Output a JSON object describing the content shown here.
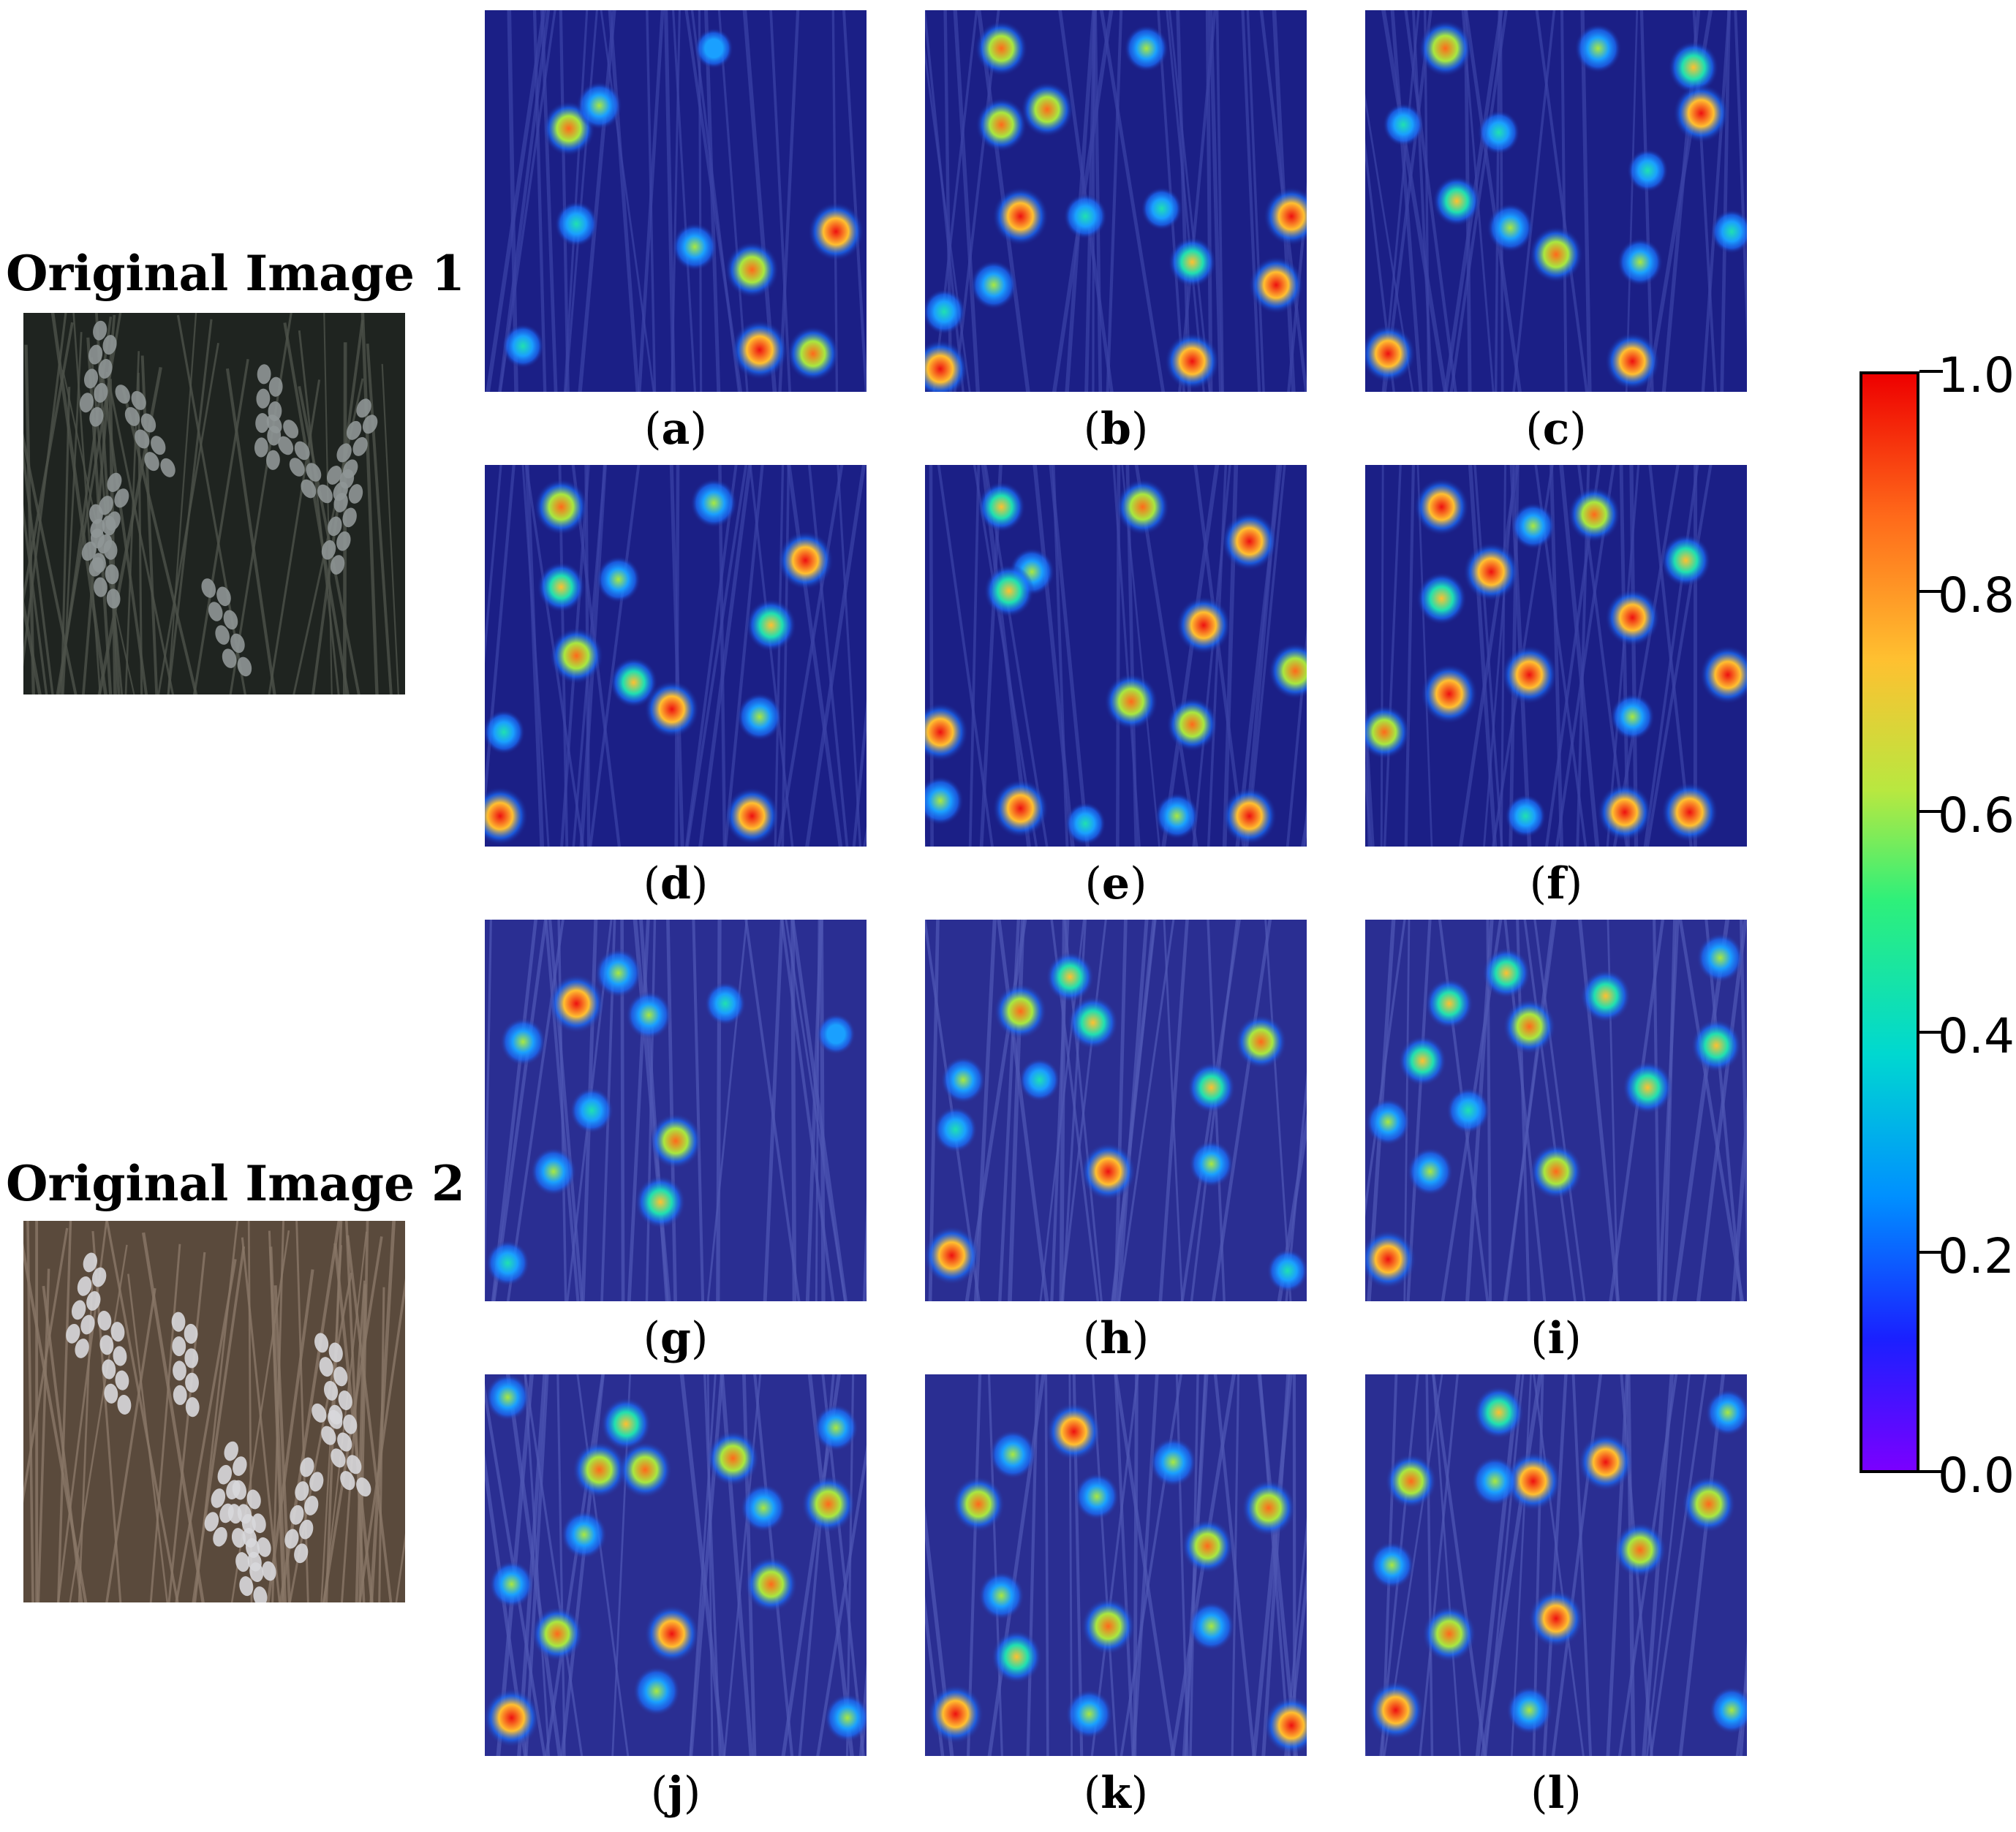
{
  "originals": [
    {
      "title": "Original Image 1",
      "theme": "dark"
    },
    {
      "title": "Original Image 2",
      "theme": "light"
    }
  ],
  "panels": [
    {
      "label": "a",
      "image": 1,
      "hot": [
        [
          0.22,
          0.31,
          0.8
        ],
        [
          0.3,
          0.25,
          0.5
        ],
        [
          0.55,
          0.62,
          0.5
        ],
        [
          0.7,
          0.68,
          0.85
        ],
        [
          0.92,
          0.58,
          0.95
        ],
        [
          0.72,
          0.89,
          1.0
        ],
        [
          0.86,
          0.9,
          0.8
        ],
        [
          0.24,
          0.56,
          0.4
        ],
        [
          0.1,
          0.88,
          0.35
        ],
        [
          0.6,
          0.1,
          0.2
        ]
      ]
    },
    {
      "label": "b",
      "image": 1,
      "hot": [
        [
          0.2,
          0.1,
          0.8
        ],
        [
          0.58,
          0.1,
          0.45
        ],
        [
          0.2,
          0.3,
          0.75
        ],
        [
          0.32,
          0.26,
          0.8
        ],
        [
          0.25,
          0.54,
          0.95
        ],
        [
          0.42,
          0.54,
          0.4
        ],
        [
          0.18,
          0.72,
          0.55
        ],
        [
          0.05,
          0.79,
          0.4
        ],
        [
          0.7,
          0.66,
          0.6
        ],
        [
          0.92,
          0.72,
          0.9
        ],
        [
          0.96,
          0.54,
          0.95
        ],
        [
          0.7,
          0.92,
          0.9
        ],
        [
          0.04,
          0.94,
          0.95
        ],
        [
          0.62,
          0.52,
          0.3
        ]
      ]
    },
    {
      "label": "c",
      "image": 1,
      "hot": [
        [
          0.21,
          0.1,
          0.85
        ],
        [
          0.61,
          0.1,
          0.55
        ],
        [
          0.86,
          0.15,
          0.7
        ],
        [
          0.88,
          0.27,
          0.95
        ],
        [
          0.35,
          0.32,
          0.35
        ],
        [
          0.24,
          0.5,
          0.6
        ],
        [
          0.38,
          0.57,
          0.55
        ],
        [
          0.5,
          0.64,
          0.85
        ],
        [
          0.72,
          0.66,
          0.5
        ],
        [
          0.96,
          0.58,
          0.35
        ],
        [
          0.06,
          0.9,
          0.9
        ],
        [
          0.7,
          0.92,
          0.9
        ],
        [
          0.1,
          0.3,
          0.3
        ],
        [
          0.74,
          0.42,
          0.3
        ]
      ]
    },
    {
      "label": "d",
      "image": 1,
      "hot": [
        [
          0.2,
          0.11,
          0.85
        ],
        [
          0.6,
          0.1,
          0.55
        ],
        [
          0.84,
          0.25,
          0.95
        ],
        [
          0.2,
          0.32,
          0.6
        ],
        [
          0.35,
          0.3,
          0.45
        ],
        [
          0.75,
          0.42,
          0.7
        ],
        [
          0.24,
          0.5,
          0.85
        ],
        [
          0.39,
          0.57,
          0.6
        ],
        [
          0.49,
          0.64,
          0.9
        ],
        [
          0.72,
          0.66,
          0.5
        ],
        [
          0.04,
          0.92,
          0.95
        ],
        [
          0.7,
          0.92,
          0.9
        ],
        [
          0.05,
          0.7,
          0.35
        ]
      ]
    },
    {
      "label": "e",
      "image": 1,
      "hot": [
        [
          0.2,
          0.11,
          0.6
        ],
        [
          0.57,
          0.11,
          0.85
        ],
        [
          0.85,
          0.2,
          0.95
        ],
        [
          0.28,
          0.28,
          0.5
        ],
        [
          0.22,
          0.33,
          0.7
        ],
        [
          0.73,
          0.42,
          0.9
        ],
        [
          0.54,
          0.62,
          0.85
        ],
        [
          0.97,
          0.54,
          0.85
        ],
        [
          0.7,
          0.68,
          0.75
        ],
        [
          0.04,
          0.7,
          0.95
        ],
        [
          0.25,
          0.9,
          0.95
        ],
        [
          0.42,
          0.94,
          0.3
        ],
        [
          0.66,
          0.92,
          0.45
        ],
        [
          0.85,
          0.92,
          0.9
        ],
        [
          0.04,
          0.88,
          0.55
        ]
      ]
    },
    {
      "label": "f",
      "image": 1,
      "hot": [
        [
          0.2,
          0.11,
          0.9
        ],
        [
          0.6,
          0.13,
          0.8
        ],
        [
          0.44,
          0.16,
          0.45
        ],
        [
          0.84,
          0.25,
          0.7
        ],
        [
          0.33,
          0.28,
          0.95
        ],
        [
          0.2,
          0.35,
          0.7
        ],
        [
          0.7,
          0.4,
          0.9
        ],
        [
          0.22,
          0.6,
          1.0
        ],
        [
          0.43,
          0.55,
          0.95
        ],
        [
          0.95,
          0.55,
          0.95
        ],
        [
          0.05,
          0.7,
          0.75
        ],
        [
          0.7,
          0.66,
          0.45
        ],
        [
          0.68,
          0.91,
          0.9
        ],
        [
          0.85,
          0.91,
          1.0
        ],
        [
          0.42,
          0.92,
          0.3
        ]
      ]
    },
    {
      "label": "g",
      "image": 2,
      "hot": [
        [
          0.24,
          0.22,
          0.95
        ],
        [
          0.35,
          0.14,
          0.55
        ],
        [
          0.43,
          0.25,
          0.5
        ],
        [
          0.63,
          0.22,
          0.3
        ],
        [
          0.1,
          0.32,
          0.5
        ],
        [
          0.28,
          0.5,
          0.4
        ],
        [
          0.5,
          0.58,
          0.8
        ],
        [
          0.46,
          0.74,
          0.7
        ],
        [
          0.18,
          0.66,
          0.5
        ],
        [
          0.92,
          0.3,
          0.2
        ],
        [
          0.06,
          0.9,
          0.4
        ]
      ]
    },
    {
      "label": "h",
      "image": 2,
      "hot": [
        [
          0.25,
          0.24,
          0.8
        ],
        [
          0.38,
          0.15,
          0.6
        ],
        [
          0.44,
          0.27,
          0.7
        ],
        [
          0.88,
          0.32,
          0.75
        ],
        [
          0.1,
          0.42,
          0.45
        ],
        [
          0.08,
          0.55,
          0.4
        ],
        [
          0.75,
          0.44,
          0.6
        ],
        [
          0.48,
          0.66,
          0.9
        ],
        [
          0.75,
          0.64,
          0.45
        ],
        [
          0.07,
          0.88,
          0.95
        ],
        [
          0.3,
          0.42,
          0.3
        ],
        [
          0.95,
          0.92,
          0.3
        ]
      ]
    },
    {
      "label": "i",
      "image": 2,
      "hot": [
        [
          0.22,
          0.22,
          0.6
        ],
        [
          0.37,
          0.14,
          0.6
        ],
        [
          0.43,
          0.28,
          0.8
        ],
        [
          0.63,
          0.2,
          0.7
        ],
        [
          0.93,
          0.1,
          0.55
        ],
        [
          0.92,
          0.33,
          0.7
        ],
        [
          0.15,
          0.37,
          0.6
        ],
        [
          0.27,
          0.5,
          0.4
        ],
        [
          0.74,
          0.44,
          0.7
        ],
        [
          0.06,
          0.53,
          0.45
        ],
        [
          0.5,
          0.66,
          0.8
        ],
        [
          0.17,
          0.66,
          0.5
        ],
        [
          0.06,
          0.89,
          0.95
        ]
      ]
    },
    {
      "label": "j",
      "image": 2,
      "hot": [
        [
          0.06,
          0.06,
          0.45
        ],
        [
          0.37,
          0.13,
          0.7
        ],
        [
          0.3,
          0.25,
          0.85
        ],
        [
          0.42,
          0.25,
          0.85
        ],
        [
          0.65,
          0.22,
          0.8
        ],
        [
          0.92,
          0.14,
          0.45
        ],
        [
          0.9,
          0.34,
          0.85
        ],
        [
          0.26,
          0.42,
          0.5
        ],
        [
          0.73,
          0.35,
          0.5
        ],
        [
          0.07,
          0.55,
          0.45
        ],
        [
          0.75,
          0.55,
          0.8
        ],
        [
          0.49,
          0.68,
          0.9
        ],
        [
          0.19,
          0.68,
          0.75
        ],
        [
          0.45,
          0.83,
          0.55
        ],
        [
          0.07,
          0.9,
          0.95
        ],
        [
          0.95,
          0.9,
          0.5
        ]
      ]
    },
    {
      "label": "k",
      "image": 2,
      "hot": [
        [
          0.39,
          0.15,
          0.9
        ],
        [
          0.23,
          0.21,
          0.55
        ],
        [
          0.65,
          0.23,
          0.55
        ],
        [
          0.14,
          0.34,
          0.8
        ],
        [
          0.45,
          0.32,
          0.45
        ],
        [
          0.74,
          0.45,
          0.75
        ],
        [
          0.9,
          0.35,
          0.85
        ],
        [
          0.2,
          0.58,
          0.5
        ],
        [
          0.48,
          0.66,
          0.85
        ],
        [
          0.75,
          0.66,
          0.55
        ],
        [
          0.24,
          0.74,
          0.7
        ],
        [
          0.08,
          0.89,
          0.95
        ],
        [
          0.43,
          0.89,
          0.55
        ],
        [
          0.96,
          0.92,
          0.9
        ]
      ]
    },
    {
      "label": "l",
      "image": 2,
      "hot": [
        [
          0.35,
          0.1,
          0.7
        ],
        [
          0.95,
          0.1,
          0.45
        ],
        [
          0.12,
          0.28,
          0.75
        ],
        [
          0.44,
          0.28,
          0.95
        ],
        [
          0.34,
          0.28,
          0.55
        ],
        [
          0.63,
          0.23,
          0.9
        ],
        [
          0.9,
          0.34,
          0.85
        ],
        [
          0.72,
          0.46,
          0.8
        ],
        [
          0.07,
          0.5,
          0.45
        ],
        [
          0.5,
          0.64,
          0.9
        ],
        [
          0.22,
          0.68,
          0.85
        ],
        [
          0.08,
          0.88,
          0.95
        ],
        [
          0.43,
          0.88,
          0.5
        ],
        [
          0.96,
          0.88,
          0.45
        ]
      ]
    }
  ],
  "colorbar": {
    "min": 0.0,
    "max": 1.0,
    "ticks": [
      "0.0",
      "0.2",
      "0.4",
      "0.6",
      "0.8",
      "1.0"
    ],
    "colors": [
      "#7a00ff",
      "#1a20ff",
      "#0090ff",
      "#00d8d0",
      "#2ef07a",
      "#b8e840",
      "#ffc030",
      "#ff6a1a",
      "#ee0000"
    ]
  }
}
